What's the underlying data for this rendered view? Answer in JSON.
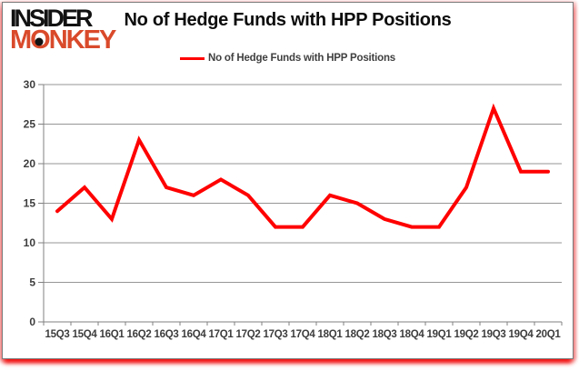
{
  "logo": {
    "line1": "INSIDER",
    "line2": "MONKEY"
  },
  "header": {
    "title": "No of Hedge Funds with HPP Positions"
  },
  "legend": {
    "label": "No of Hedge Funds with HPP Positions"
  },
  "colors": {
    "series_line": "#ff0000",
    "logo_black": "#121212",
    "logo_red": "#d94a2b",
    "axis_text": "#3d3d3d",
    "gridline": "#969696",
    "axis_line": "#808080",
    "frame_border": "#7a7a7a",
    "glow_red": "#f30b0b"
  },
  "chart_data": {
    "type": "line",
    "title": "No of Hedge Funds with HPP Positions",
    "categories": [
      "15Q3",
      "15Q4",
      "16Q1",
      "16Q2",
      "16Q3",
      "16Q4",
      "17Q1",
      "17Q2",
      "17Q3",
      "17Q4",
      "18Q1",
      "18Q2",
      "18Q3",
      "18Q4",
      "19Q1",
      "19Q2",
      "19Q3",
      "19Q4",
      "20Q1"
    ],
    "series": [
      {
        "name": "No of Hedge Funds with HPP Positions",
        "color": "#ff0000",
        "values": [
          14,
          17,
          13,
          23,
          17,
          16,
          18,
          16,
          12,
          12,
          16,
          15,
          13,
          12,
          12,
          17,
          27,
          19,
          19
        ]
      }
    ],
    "xlabel": "",
    "ylabel": "",
    "ylim": [
      0,
      30
    ],
    "ytick_step": 5,
    "yticks": [
      0,
      5,
      10,
      15,
      20,
      25,
      30
    ],
    "grid": true,
    "legend_position": "top-center"
  }
}
